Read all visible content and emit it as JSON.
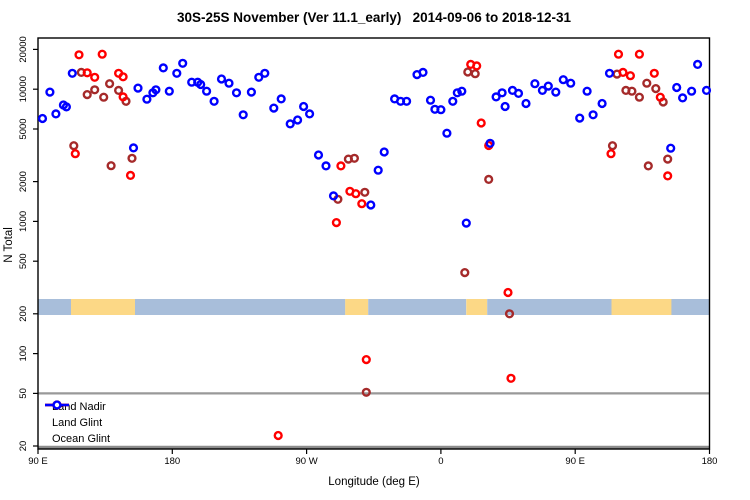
{
  "title": "30S-25S November (Ver 11.1_early)   2014-09-06 to 2018-12-31",
  "chart_data": {
    "type": "scatter",
    "title": "30S-25S November (Ver 11.1_early)   2014-09-06 to 2018-12-31",
    "xlabel": "Longitude (deg E)",
    "ylabel": "N Total",
    "x_axis": {
      "note": "longitude plotted continuously eastward from 90E (units 90..540, wraps past 180)",
      "range": [
        90,
        540
      ],
      "ticks": [
        90,
        180,
        270,
        360,
        450,
        540
      ],
      "tick_labels": [
        "90 E",
        "180",
        "90 W",
        "0",
        "90 E",
        "180"
      ]
    },
    "y_axis": {
      "scale": "log",
      "range": [
        19,
        24000
      ],
      "ticks": [
        20,
        50,
        100,
        200,
        500,
        1000,
        2000,
        5000,
        10000,
        20000
      ],
      "tick_labels": [
        "20",
        "50",
        "100",
        "200",
        "500",
        "1000",
        "2000",
        "5000",
        "10000",
        "20000"
      ]
    },
    "gray_gridlines_at": [
      50,
      20
    ],
    "grid_color": "#999999",
    "surface_band": {
      "value_range": [
        196,
        259
      ],
      "ocean_color": "#A8BEDA",
      "land_color": "#FCD886",
      "segments": [
        {
          "lon": [
            90,
            112.1
          ],
          "surface": "ocean"
        },
        {
          "lon": [
            112.1,
            155.0
          ],
          "surface": "land"
        },
        {
          "lon": [
            155.0,
            295.9
          ],
          "surface": "ocean"
        },
        {
          "lon": [
            295.9,
            311.3
          ],
          "surface": "land"
        },
        {
          "lon": [
            311.3,
            377.0
          ],
          "surface": "ocean"
        },
        {
          "lon": [
            377.0,
            391.0
          ],
          "surface": "land"
        },
        {
          "lon": [
            391.0,
            474.3
          ],
          "surface": "ocean"
        },
        {
          "lon": [
            474.3,
            514.5
          ],
          "surface": "land"
        },
        {
          "lon": [
            514.5,
            540.0
          ],
          "surface": "ocean"
        }
      ]
    },
    "legend": {
      "position": "bottom-left"
    },
    "series": [
      {
        "name": "Land Nadir",
        "color": "#A52A2A",
        "points": [
          [
            119,
            13400
          ],
          [
            123,
            9100
          ],
          [
            128,
            9900
          ],
          [
            134,
            8700
          ],
          [
            138,
            11000
          ],
          [
            144,
            9800
          ],
          [
            149,
            8100
          ],
          [
            114,
            3740
          ],
          [
            153,
            3000
          ],
          [
            139,
            2640
          ],
          [
            298,
            2960
          ],
          [
            302,
            3000
          ],
          [
            291,
            1470
          ],
          [
            309,
            1660
          ],
          [
            378,
            13500
          ],
          [
            383,
            13100
          ],
          [
            392,
            2080
          ],
          [
            376,
            410
          ],
          [
            406,
            200
          ],
          [
            478,
            13000
          ],
          [
            498,
            11100
          ],
          [
            504,
            10100
          ],
          [
            484,
            9800
          ],
          [
            488,
            9650
          ],
          [
            493,
            8700
          ],
          [
            509,
            8000
          ],
          [
            475,
            3740
          ],
          [
            512,
            2960
          ],
          [
            499,
            2630
          ],
          [
            310,
            51
          ]
        ]
      },
      {
        "name": "Land Glint",
        "color": "#FF0000",
        "points": [
          [
            117.5,
            18200
          ],
          [
            133,
            18400
          ],
          [
            123,
            13300
          ],
          [
            128,
            12300
          ],
          [
            144,
            13200
          ],
          [
            147,
            12400
          ],
          [
            147,
            8750
          ],
          [
            115,
            3250
          ],
          [
            152,
            2230
          ],
          [
            293,
            2630
          ],
          [
            299,
            1690
          ],
          [
            303,
            1620
          ],
          [
            307,
            1360
          ],
          [
            290,
            980
          ],
          [
            380,
            15400
          ],
          [
            384,
            15000
          ],
          [
            387,
            5550
          ],
          [
            392,
            3750
          ],
          [
            405,
            290
          ],
          [
            407,
            65
          ],
          [
            479,
            18400
          ],
          [
            493,
            18400
          ],
          [
            482,
            13400
          ],
          [
            487,
            12650
          ],
          [
            503,
            13200
          ],
          [
            507,
            8700
          ],
          [
            474,
            3250
          ],
          [
            512,
            2210
          ],
          [
            310,
            90
          ],
          [
            251,
            24
          ]
        ]
      },
      {
        "name": "Ocean Glint",
        "color": "#0000FF",
        "points": [
          [
            93,
            6000
          ],
          [
            98,
            9500
          ],
          [
            102,
            6500
          ],
          [
            107,
            7600
          ],
          [
            109,
            7350
          ],
          [
            113,
            13200
          ],
          [
            157,
            10200
          ],
          [
            163,
            8400
          ],
          [
            154,
            3600
          ],
          [
            167,
            9400
          ],
          [
            169,
            9900
          ],
          [
            174,
            14500
          ],
          [
            178,
            9650
          ],
          [
            183,
            13200
          ],
          [
            187,
            15700
          ],
          [
            193,
            11300
          ],
          [
            197,
            11300
          ],
          [
            199,
            10850
          ],
          [
            203,
            9650
          ],
          [
            208,
            8100
          ],
          [
            213,
            11950
          ],
          [
            218,
            11100
          ],
          [
            223,
            9400
          ],
          [
            227.5,
            6400
          ],
          [
            233,
            9500
          ],
          [
            238,
            12300
          ],
          [
            242,
            13200
          ],
          [
            248,
            7200
          ],
          [
            253,
            8450
          ],
          [
            259,
            5460
          ],
          [
            264,
            5850
          ],
          [
            268,
            7400
          ],
          [
            272,
            6500
          ],
          [
            278,
            3180
          ],
          [
            283,
            2630
          ],
          [
            288,
            1560
          ],
          [
            313,
            1330
          ],
          [
            318,
            2440
          ],
          [
            322,
            3350
          ],
          [
            329,
            8450
          ],
          [
            333,
            8100
          ],
          [
            337,
            8100
          ],
          [
            344,
            12900
          ],
          [
            348,
            13400
          ],
          [
            353,
            8250
          ],
          [
            356,
            7050
          ],
          [
            360,
            7000
          ],
          [
            364,
            4650
          ],
          [
            368,
            8100
          ],
          [
            371,
            9400
          ],
          [
            374,
            9650
          ],
          [
            377,
            970
          ],
          [
            393,
            3900
          ],
          [
            397,
            8750
          ],
          [
            401,
            9400
          ],
          [
            403,
            7400
          ],
          [
            408,
            9800
          ],
          [
            412,
            9300
          ],
          [
            417,
            7800
          ],
          [
            423,
            11000
          ],
          [
            428,
            9800
          ],
          [
            432,
            10550
          ],
          [
            437,
            9500
          ],
          [
            442,
            11800
          ],
          [
            447,
            11100
          ],
          [
            453,
            6050
          ],
          [
            458,
            9650
          ],
          [
            462,
            6400
          ],
          [
            468,
            7800
          ],
          [
            473,
            13200
          ],
          [
            514,
            3580
          ],
          [
            518,
            10300
          ],
          [
            522,
            8600
          ],
          [
            528,
            9650
          ],
          [
            532,
            15400
          ],
          [
            538,
            9800
          ]
        ]
      }
    ]
  }
}
